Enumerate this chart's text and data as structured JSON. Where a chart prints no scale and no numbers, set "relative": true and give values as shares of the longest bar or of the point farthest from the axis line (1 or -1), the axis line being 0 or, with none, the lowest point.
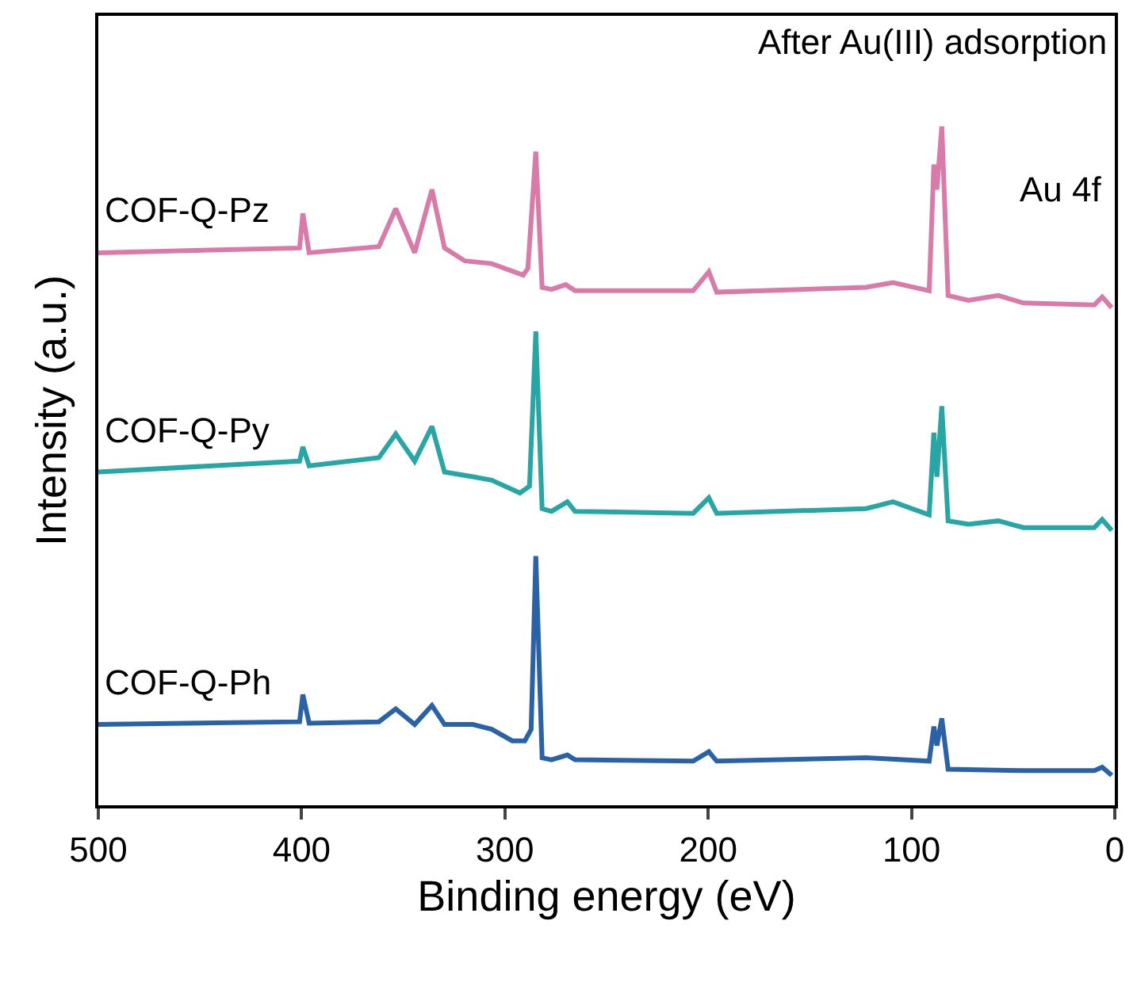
{
  "chart_data": {
    "type": "line",
    "relative": true,
    "xlabel": "Binding energy (eV)",
    "ylabel": "Intensity (a.u.)",
    "xlim": [
      500,
      0
    ],
    "xticks": [
      500,
      400,
      300,
      200,
      100,
      0
    ],
    "legend": false,
    "marker": "none",
    "line_style": "solid",
    "annotations": [
      "After Au(III) adsorption",
      "Au 4f"
    ],
    "series": [
      {
        "name": "COF-Q-Pz",
        "color": "#d97aa8",
        "x": [
          500,
          401,
          399.4,
          396.3,
          362,
          353.7,
          344.4,
          335.9,
          329.7,
          319.7,
          306.5,
          291,
          288.7,
          284.8,
          281.7,
          277.1,
          270.1,
          265.5,
          207.4,
          199.7,
          195.8,
          122.3,
          109.1,
          91.3,
          89.0,
          87.5,
          85.1,
          82.0,
          72.0,
          57.3,
          44.9,
          10.1,
          6.2,
          1.5
        ],
        "values": [
          0.814,
          0.821,
          0.872,
          0.814,
          0.823,
          0.879,
          0.814,
          0.907,
          0.821,
          0.802,
          0.798,
          0.781,
          0.791,
          0.963,
          0.763,
          0.76,
          0.767,
          0.758,
          0.758,
          0.786,
          0.756,
          0.763,
          0.77,
          0.758,
          0.944,
          0.907,
          1.0,
          0.751,
          0.744,
          0.751,
          0.74,
          0.737,
          0.749,
          0.733
        ]
      },
      {
        "name": "COF-Q-Py",
        "color": "#26a6a4",
        "x": [
          500,
          401,
          399.4,
          396.3,
          362,
          353.7,
          344.4,
          335.9,
          329.7,
          315.8,
          306.5,
          292.6,
          287.9,
          284.8,
          281.7,
          277.1,
          269.3,
          265.5,
          207.4,
          199.7,
          195.8,
          122.3,
          109.1,
          91.3,
          89.0,
          87.5,
          85.1,
          82.0,
          72.0,
          57.3,
          44.9,
          10.1,
          6.2,
          1.5
        ],
        "values": [
          0.491,
          0.507,
          0.528,
          0.5,
          0.512,
          0.547,
          0.507,
          0.558,
          0.491,
          0.484,
          0.479,
          0.46,
          0.47,
          0.698,
          0.437,
          0.433,
          0.447,
          0.433,
          0.43,
          0.453,
          0.43,
          0.437,
          0.447,
          0.428,
          0.549,
          0.484,
          0.588,
          0.419,
          0.414,
          0.419,
          0.409,
          0.409,
          0.421,
          0.405
        ]
      },
      {
        "name": "COF-Q-Ph",
        "color": "#2a62a8",
        "x": [
          500,
          401,
          399.4,
          396.3,
          362,
          353.7,
          344.4,
          335.9,
          329.7,
          315.8,
          306.5,
          296.4,
          290.2,
          287.1,
          284.8,
          281.7,
          277.1,
          269.3,
          265.5,
          207.4,
          199.7,
          195.8,
          122.3,
          91.3,
          89.0,
          87.5,
          85.1,
          82.0,
          44.9,
          10.1,
          6.2,
          1.5
        ],
        "values": [
          0.119,
          0.123,
          0.163,
          0.121,
          0.123,
          0.142,
          0.119,
          0.147,
          0.119,
          0.119,
          0.112,
          0.095,
          0.095,
          0.112,
          0.367,
          0.07,
          0.067,
          0.074,
          0.067,
          0.065,
          0.079,
          0.065,
          0.07,
          0.065,
          0.116,
          0.088,
          0.128,
          0.053,
          0.051,
          0.051,
          0.056,
          0.044
        ]
      }
    ]
  }
}
